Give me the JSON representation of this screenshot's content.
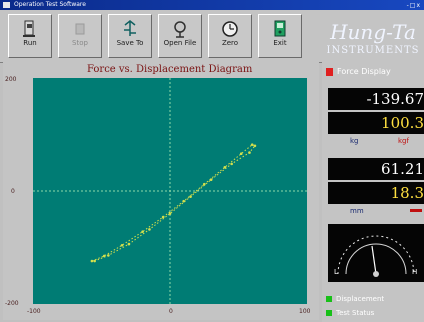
{
  "window": {
    "title": "Operation Test Software",
    "controls": "-□x"
  },
  "toolbar": {
    "buttons": [
      {
        "label": "Run",
        "icon": "run-icon",
        "enabled": true
      },
      {
        "label": "Stop",
        "icon": "stop-icon",
        "enabled": false
      },
      {
        "label": "Save To",
        "icon": "save-icon",
        "enabled": true
      },
      {
        "label": "Open File",
        "icon": "open-file-icon",
        "enabled": true
      },
      {
        "label": "Zero",
        "icon": "zero-icon",
        "enabled": true
      },
      {
        "label": "Exit",
        "icon": "exit-icon",
        "enabled": true
      }
    ]
  },
  "brand": {
    "name": "Hung-Ta",
    "tagline": "INSTRUMENTS"
  },
  "chart": {
    "title": "Force vs. Displacement Diagram",
    "y_ticks": [
      "200",
      "0",
      "-200"
    ],
    "x_ticks": [
      "-100",
      "0",
      "100"
    ]
  },
  "chart_data": {
    "type": "scatter",
    "title": "Force vs. Displacement Diagram",
    "xlabel": "",
    "ylabel": "",
    "xlim": [
      -100,
      100
    ],
    "ylim": [
      -200,
      200
    ],
    "grid": true,
    "colors": {
      "background": "#007c74",
      "points": "#d4e04c",
      "axes": "#8cd8a8"
    },
    "series": [
      {
        "x": [
          -57,
          -48,
          -35,
          -20,
          -5,
          10,
          25,
          40,
          52,
          60,
          62,
          58,
          45,
          30,
          15,
          0,
          -15,
          -30,
          -45,
          -55
        ],
        "y": [
          -124,
          -115,
          -96,
          -72,
          -46,
          -18,
          12,
          42,
          66,
          82,
          80,
          68,
          48,
          20,
          -10,
          -40,
          -68,
          -94,
          -114,
          -124
        ]
      }
    ]
  },
  "readouts": {
    "force_header": "Force Display",
    "force_value": "-139.67",
    "force_peak": "100.3",
    "force_unit": "kg",
    "force_unit2": "kgf",
    "disp_value": "61.21",
    "disp_peak": "18.3",
    "disp_unit": "mm",
    "status1": "Displacement",
    "status2": "Test Status"
  },
  "gauge": {
    "label_left": "L",
    "label_right": "H"
  }
}
